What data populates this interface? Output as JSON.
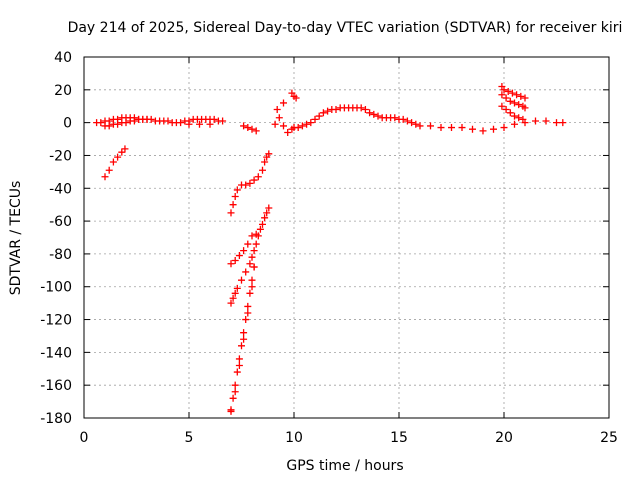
{
  "chart_data": {
    "type": "scatter",
    "title": "Day 214 of 2025, Sidereal Day-to-day VTEC variation (SDTVAR) for receiver kiri",
    "xlabel": "GPS time / hours",
    "ylabel": "SDTVAR / TECUs",
    "xlim": [
      0,
      25
    ],
    "ylim": [
      -180,
      40
    ],
    "xticks": [
      0,
      5,
      10,
      15,
      20,
      25
    ],
    "yticks": [
      -180,
      -160,
      -140,
      -120,
      -100,
      -80,
      -60,
      -40,
      -20,
      0,
      20,
      40
    ],
    "grid": true,
    "legend": "none",
    "marker": "plus",
    "color": "#ff0000",
    "series": [
      {
        "x": [
          0.6,
          0.8,
          1.0,
          1.2,
          1.4,
          1.6,
          1.8,
          2.0,
          2.2,
          2.4,
          2.6,
          2.8,
          3.0,
          3.2,
          3.4,
          3.6,
          3.8,
          4.0,
          4.2,
          4.4,
          4.6,
          4.8,
          5.0,
          5.2,
          5.4,
          5.6,
          5.8,
          6.0,
          6.2,
          6.4,
          6.6,
          1.0,
          1.2,
          1.4,
          1.6,
          1.8,
          2.0,
          2.2,
          2.4,
          2.6,
          2.8,
          3.0,
          5.0,
          5.5,
          6.0,
          1.0,
          1.2,
          1.4,
          1.6,
          1.8,
          1.95,
          7.0,
          7.1,
          7.2,
          7.3,
          7.5,
          7.7,
          7.9,
          8.1,
          8.3,
          8.5,
          8.6,
          8.7,
          8.8,
          7.0,
          7.1,
          7.2,
          7.3,
          7.5,
          7.7,
          7.9,
          8.0,
          8.1,
          8.2,
          8.3,
          8.4,
          8.5,
          8.6,
          8.7,
          8.8,
          7.0,
          7.2,
          7.4,
          7.6,
          7.8,
          8.0,
          7.0,
          7.2,
          7.4,
          7.6,
          7.8,
          8.0,
          8.1,
          8.2,
          7.0,
          7.1,
          7.2,
          7.3,
          7.4,
          7.5,
          7.6,
          7.7,
          7.8,
          7.9,
          8.0,
          8.1,
          7.6,
          7.8,
          8.0,
          8.2,
          9.1,
          9.3,
          9.5,
          9.7,
          9.9,
          10.0,
          10.2,
          10.4,
          10.6,
          10.8,
          11.0,
          11.2,
          11.4,
          11.6,
          11.8,
          12.0,
          12.2,
          12.4,
          12.6,
          12.8,
          13.0,
          13.2,
          13.4,
          13.6,
          13.8,
          14.0,
          14.2,
          14.4,
          14.6,
          14.8,
          15.0,
          15.2,
          15.4,
          15.6,
          15.8,
          16.0,
          16.5,
          17.0,
          17.5,
          18.0,
          18.5,
          19.0,
          19.5,
          20.0,
          20.5,
          21.0,
          21.5,
          22.0,
          22.5,
          22.8,
          19.9,
          20.0,
          20.2,
          20.4,
          20.6,
          20.8,
          21.0,
          19.9,
          20.1,
          20.3,
          20.5,
          20.7,
          20.9,
          21.0,
          19.9,
          20.1,
          20.3,
          20.5,
          20.7,
          20.9,
          9.9,
          10.0,
          10.1,
          9.5,
          9.2
        ],
        "y": [
          0,
          0,
          1,
          1,
          2,
          2,
          3,
          3,
          3,
          3,
          2,
          2,
          2,
          2,
          1,
          1,
          1,
          1,
          0,
          0,
          0,
          1,
          1,
          2,
          2,
          2,
          2,
          2,
          2,
          1,
          1,
          -2,
          -2,
          -1,
          -1,
          0,
          0,
          1,
          1,
          2,
          2,
          2,
          -1,
          -1,
          -1,
          -33,
          -29,
          -24,
          -21,
          -18,
          -16,
          -55,
          -50,
          -45,
          -41,
          -38,
          -38,
          -37,
          -35,
          -33,
          -29,
          -24,
          -21,
          -19,
          -110,
          -107,
          -104,
          -101,
          -96,
          -91,
          -86,
          -82,
          -78,
          -74,
          -69,
          -65,
          -62,
          -58,
          -55,
          -52,
          -86,
          -84,
          -81,
          -78,
          -74,
          -69,
          -176,
          -164,
          -148,
          -132,
          -116,
          -100,
          -88,
          -68,
          -175,
          -168,
          -160,
          -152,
          -144,
          -136,
          -128,
          -120,
          -112,
          -104,
          -96,
          -88,
          -2,
          -3,
          -4,
          -5,
          -1,
          3,
          -2,
          -6,
          -4,
          -3,
          -3,
          -2,
          -1,
          0,
          2,
          4,
          6,
          7,
          8,
          8,
          9,
          9,
          9,
          9,
          9,
          9,
          8,
          6,
          5,
          4,
          3,
          3,
          3,
          3,
          2,
          2,
          1,
          0,
          -1,
          -2,
          -2,
          -3,
          -3,
          -3,
          -4,
          -5,
          -4,
          -3,
          -1,
          0,
          1,
          1,
          0,
          0,
          22,
          20,
          19,
          18,
          17,
          16,
          15,
          17,
          15,
          13,
          12,
          11,
          10,
          9,
          10,
          8,
          6,
          4,
          3,
          2,
          18,
          16,
          15,
          12,
          8
        ]
      }
    ]
  }
}
